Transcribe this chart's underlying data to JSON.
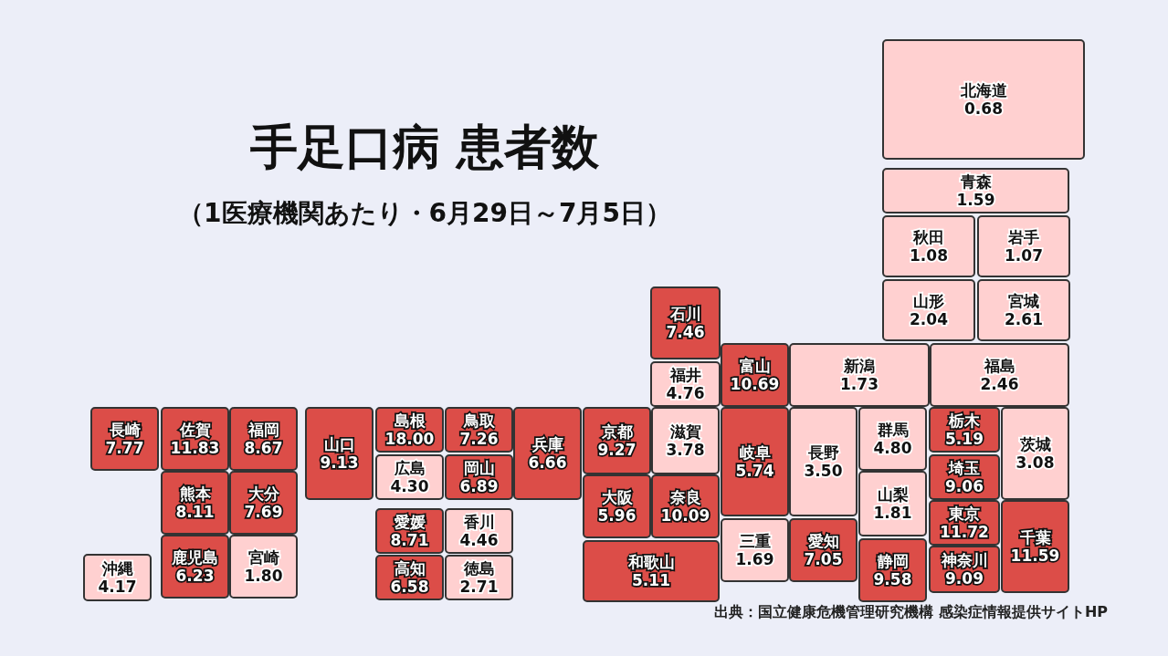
{
  "chart_data": {
    "type": "other",
    "title": "手足口病 患者数",
    "subtitle": "（1医療機関あたり・6月29日～7月5日）",
    "annotations": [
      "出典：国立健康危機管理研究機構 感染症情報提供サイトHP"
    ],
    "categories": [
      "北海道",
      "青森",
      "秋田",
      "岩手",
      "山形",
      "宮城",
      "石川",
      "富山",
      "新潟",
      "福島",
      "福井",
      "長崎",
      "佐賀",
      "福岡",
      "山口",
      "島根",
      "鳥取",
      "広島",
      "岡山",
      "兵庫",
      "京都",
      "滋賀",
      "奈良",
      "岐阜",
      "長野",
      "群馬",
      "山梨",
      "栃木",
      "埼玉",
      "東京",
      "神奈川",
      "茨城",
      "千葉",
      "熊本",
      "大分",
      "鹿児島",
      "宮崎",
      "沖縄",
      "愛媛",
      "香川",
      "高知",
      "徳島",
      "大阪",
      "和歌山",
      "三重",
      "愛知",
      "静岡"
    ],
    "values": [
      0.68,
      1.59,
      1.08,
      1.07,
      2.04,
      2.61,
      7.46,
      10.69,
      1.73,
      2.46,
      4.76,
      7.77,
      11.83,
      8.67,
      9.13,
      18,
      7.26,
      4.3,
      6.89,
      6.66,
      9.27,
      3.78,
      10.09,
      5.74,
      3.5,
      4.8,
      1.81,
      5.19,
      9.06,
      11.72,
      9.09,
      3.08,
      11.59,
      8.11,
      7.69,
      6.23,
      1.8,
      4.17,
      8.71,
      4.46,
      6.58,
      2.71,
      5.96,
      5.11,
      1.69,
      7.05,
      9.58
    ],
    "value_labels": [
      "0.68",
      "1.59",
      "1.08",
      "1.07",
      "2.04",
      "2.61",
      "7.46",
      "10.69",
      "1.73",
      "2.46",
      "4.76",
      "7.77",
      "11.83",
      "8.67",
      "9.13",
      "18.00",
      "7.26",
      "4.30",
      "6.89",
      "6.66",
      "9.27",
      "3.78",
      "10.09",
      "5.74",
      "3.50",
      "4.80",
      "1.81",
      "5.19",
      "9.06",
      "11.72",
      "9.09",
      "3.08",
      "11.59",
      "8.11",
      "7.69",
      "6.23",
      "1.80",
      "4.17",
      "8.71",
      "4.46",
      "6.58",
      "2.71",
      "5.96",
      "5.11",
      "1.69",
      "7.05",
      "9.58"
    ],
    "colors": [
      "#ffd0d0",
      "#ffd0d0",
      "#ffd0d0",
      "#ffd0d0",
      "#ffd0d0",
      "#ffd0d0",
      "#dc4d48",
      "#dc4d48",
      "#ffd0d0",
      "#ffd0d0",
      "#ffd0d0",
      "#dc4d48",
      "#dc4d48",
      "#dc4d48",
      "#dc4d48",
      "#dc4d48",
      "#dc4d48",
      "#ffd0d0",
      "#dc4d48",
      "#dc4d48",
      "#dc4d48",
      "#ffd0d0",
      "#dc4d48",
      "#dc4d48",
      "#ffd0d0",
      "#ffd0d0",
      "#ffd0d0",
      "#dc4d48",
      "#dc4d48",
      "#dc4d48",
      "#dc4d48",
      "#ffd0d0",
      "#dc4d48",
      "#dc4d48",
      "#dc4d48",
      "#dc4d48",
      "#ffd0d0",
      "#ffd0d0",
      "#dc4d48",
      "#ffd0d0",
      "#dc4d48",
      "#ffd0d0",
      "#dc4d48",
      "#dc4d48",
      "#ffd0d0",
      "#dc4d48",
      "#dc4d48"
    ]
  }
}
